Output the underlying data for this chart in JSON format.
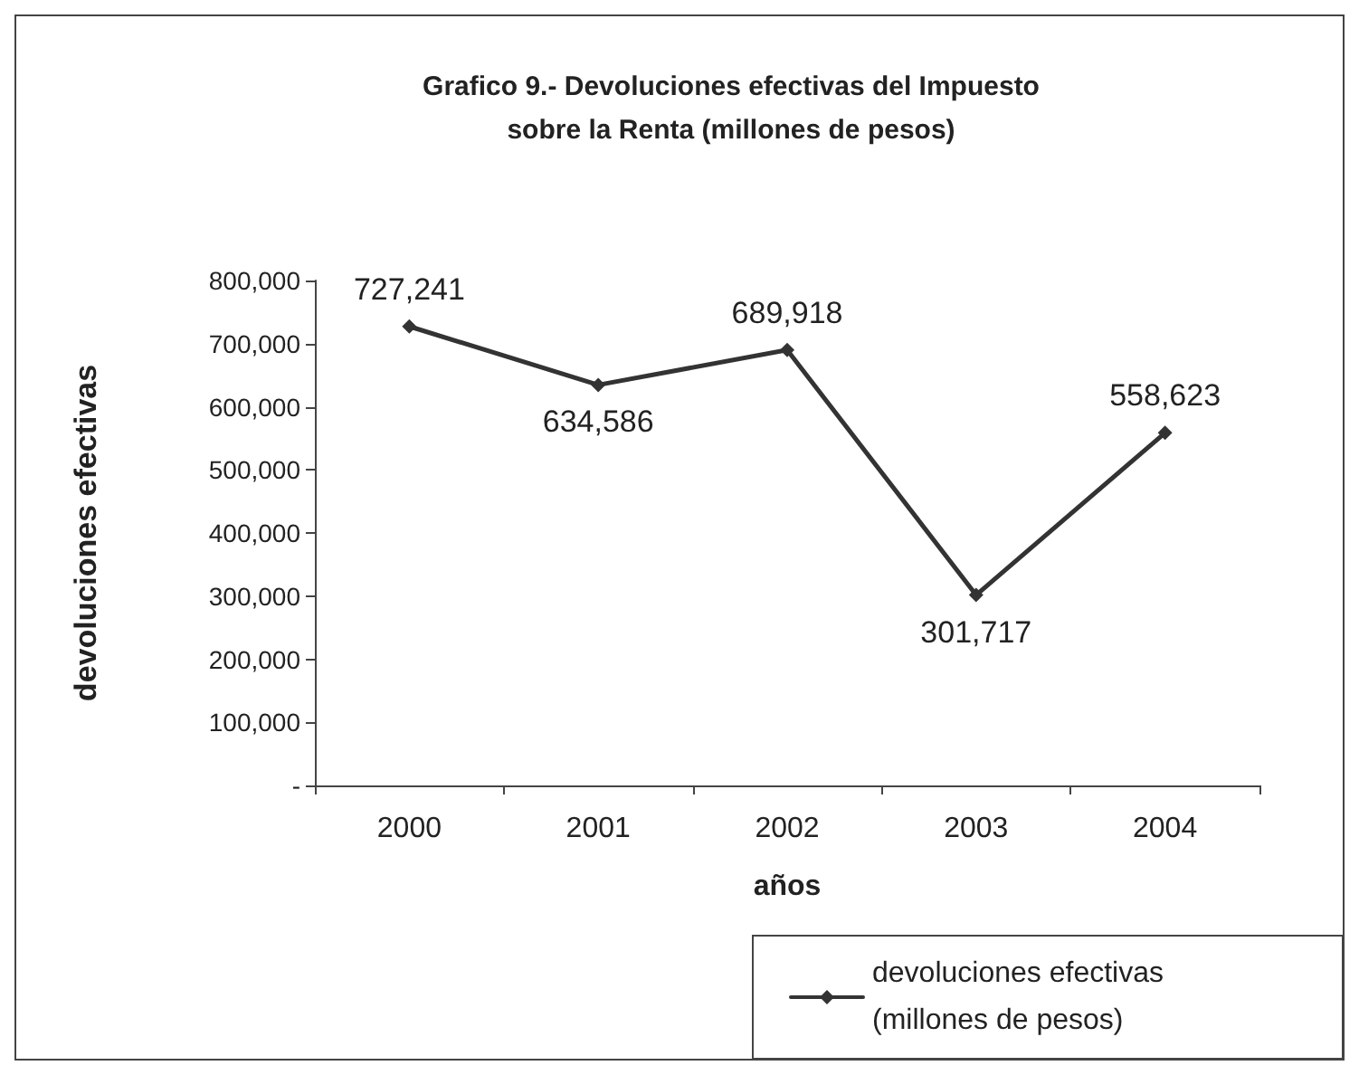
{
  "chart_data": {
    "type": "line",
    "title": "Grafico 9.- Devoluciones efectivas del Impuesto\nsobre la Renta (millones de pesos)",
    "xlabel": "años",
    "ylabel": "devoluciones efectivas",
    "categories": [
      "2000",
      "2001",
      "2002",
      "2003",
      "2004"
    ],
    "series": [
      {
        "name": "devoluciones efectivas (millones de pesos)",
        "color": "#333333",
        "values": [
          727241,
          634586,
          689918,
          301717,
          558623
        ],
        "value_labels": [
          "727,241",
          "634,586",
          "689,918",
          "301,717",
          "558,623"
        ]
      }
    ],
    "ylim": [
      0,
      800000
    ],
    "yticks": [
      {
        "value": 0,
        "label": "-"
      },
      {
        "value": 100000,
        "label": "100,000"
      },
      {
        "value": 200000,
        "label": "200,000"
      },
      {
        "value": 300000,
        "label": "300,000"
      },
      {
        "value": 400000,
        "label": "400,000"
      },
      {
        "value": 500000,
        "label": "500,000"
      },
      {
        "value": 600000,
        "label": "600,000"
      },
      {
        "value": 700000,
        "label": "700,000"
      },
      {
        "value": 800000,
        "label": "800,000"
      }
    ],
    "grid": false,
    "legend": "bottom right",
    "marker": "diamond",
    "line_style": "solid"
  }
}
